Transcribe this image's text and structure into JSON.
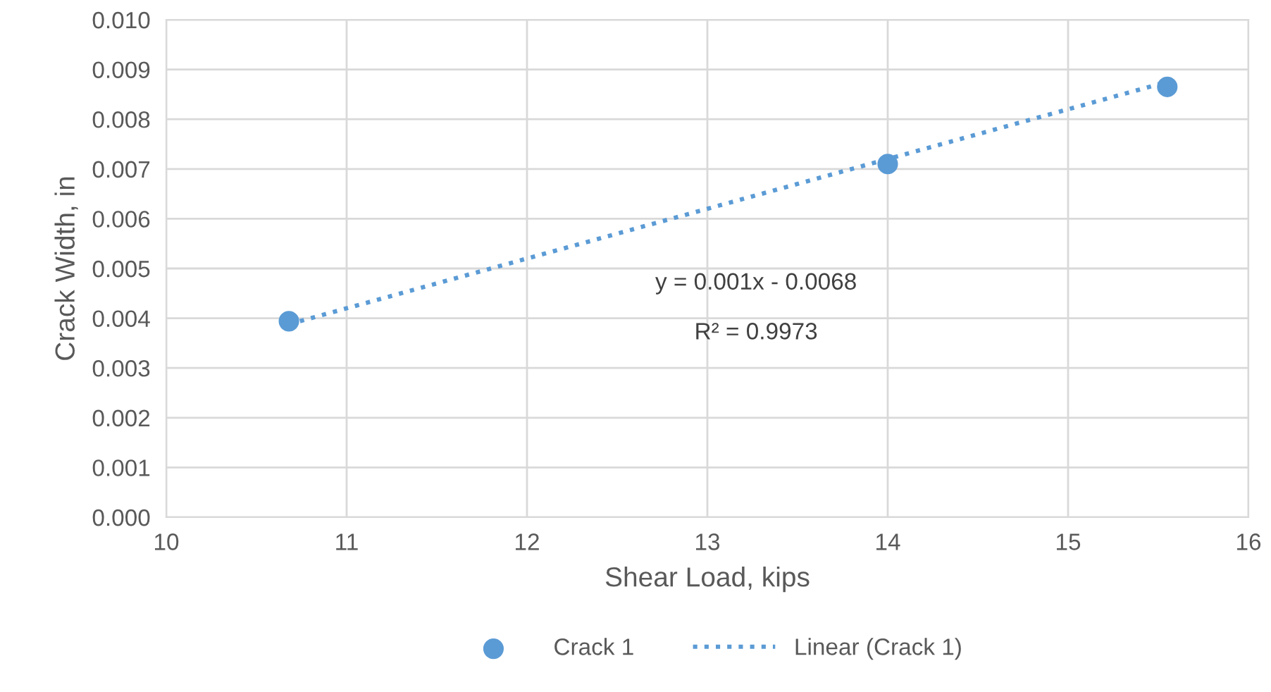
{
  "chart_data": {
    "type": "scatter",
    "xlabel": "Shear Load, kips",
    "ylabel": "Crack Width, in",
    "series": [
      {
        "name": "Crack 1",
        "color": "#5b9bd5",
        "marker": "circle",
        "x": [
          10.68,
          14.0,
          15.55
        ],
        "values": [
          0.00394,
          0.0071,
          0.00865
        ]
      },
      {
        "name": "Linear (Crack 1)",
        "color": "#5b9bd5",
        "type": "line",
        "line_style": "dotted",
        "marker": "none",
        "x": [
          10.68,
          15.55
        ],
        "values": [
          0.00388,
          0.00875
        ]
      }
    ],
    "annotations": [
      "y = 0.001x - 0.0068",
      "R² = 0.9973"
    ],
    "xlim": [
      10,
      16
    ],
    "xticks": [
      10,
      11,
      12,
      13,
      14,
      15,
      16
    ],
    "ylim": [
      0,
      0.01
    ],
    "yticks": [
      {
        "value": 0,
        "label": "0.000"
      },
      {
        "value": 0.001,
        "label": "0.001"
      },
      {
        "value": 0.002,
        "label": "0.002"
      },
      {
        "value": 0.003,
        "label": "0.003"
      },
      {
        "value": 0.004,
        "label": "0.004"
      },
      {
        "value": 0.005,
        "label": "0.005"
      },
      {
        "value": 0.006,
        "label": "0.006"
      },
      {
        "value": 0.007,
        "label": "0.007"
      },
      {
        "value": 0.008,
        "label": "0.008"
      },
      {
        "value": 0.009,
        "label": "0.009"
      },
      {
        "value": 0.01,
        "label": "0.010"
      }
    ],
    "grid": true,
    "legend": "bottom"
  }
}
